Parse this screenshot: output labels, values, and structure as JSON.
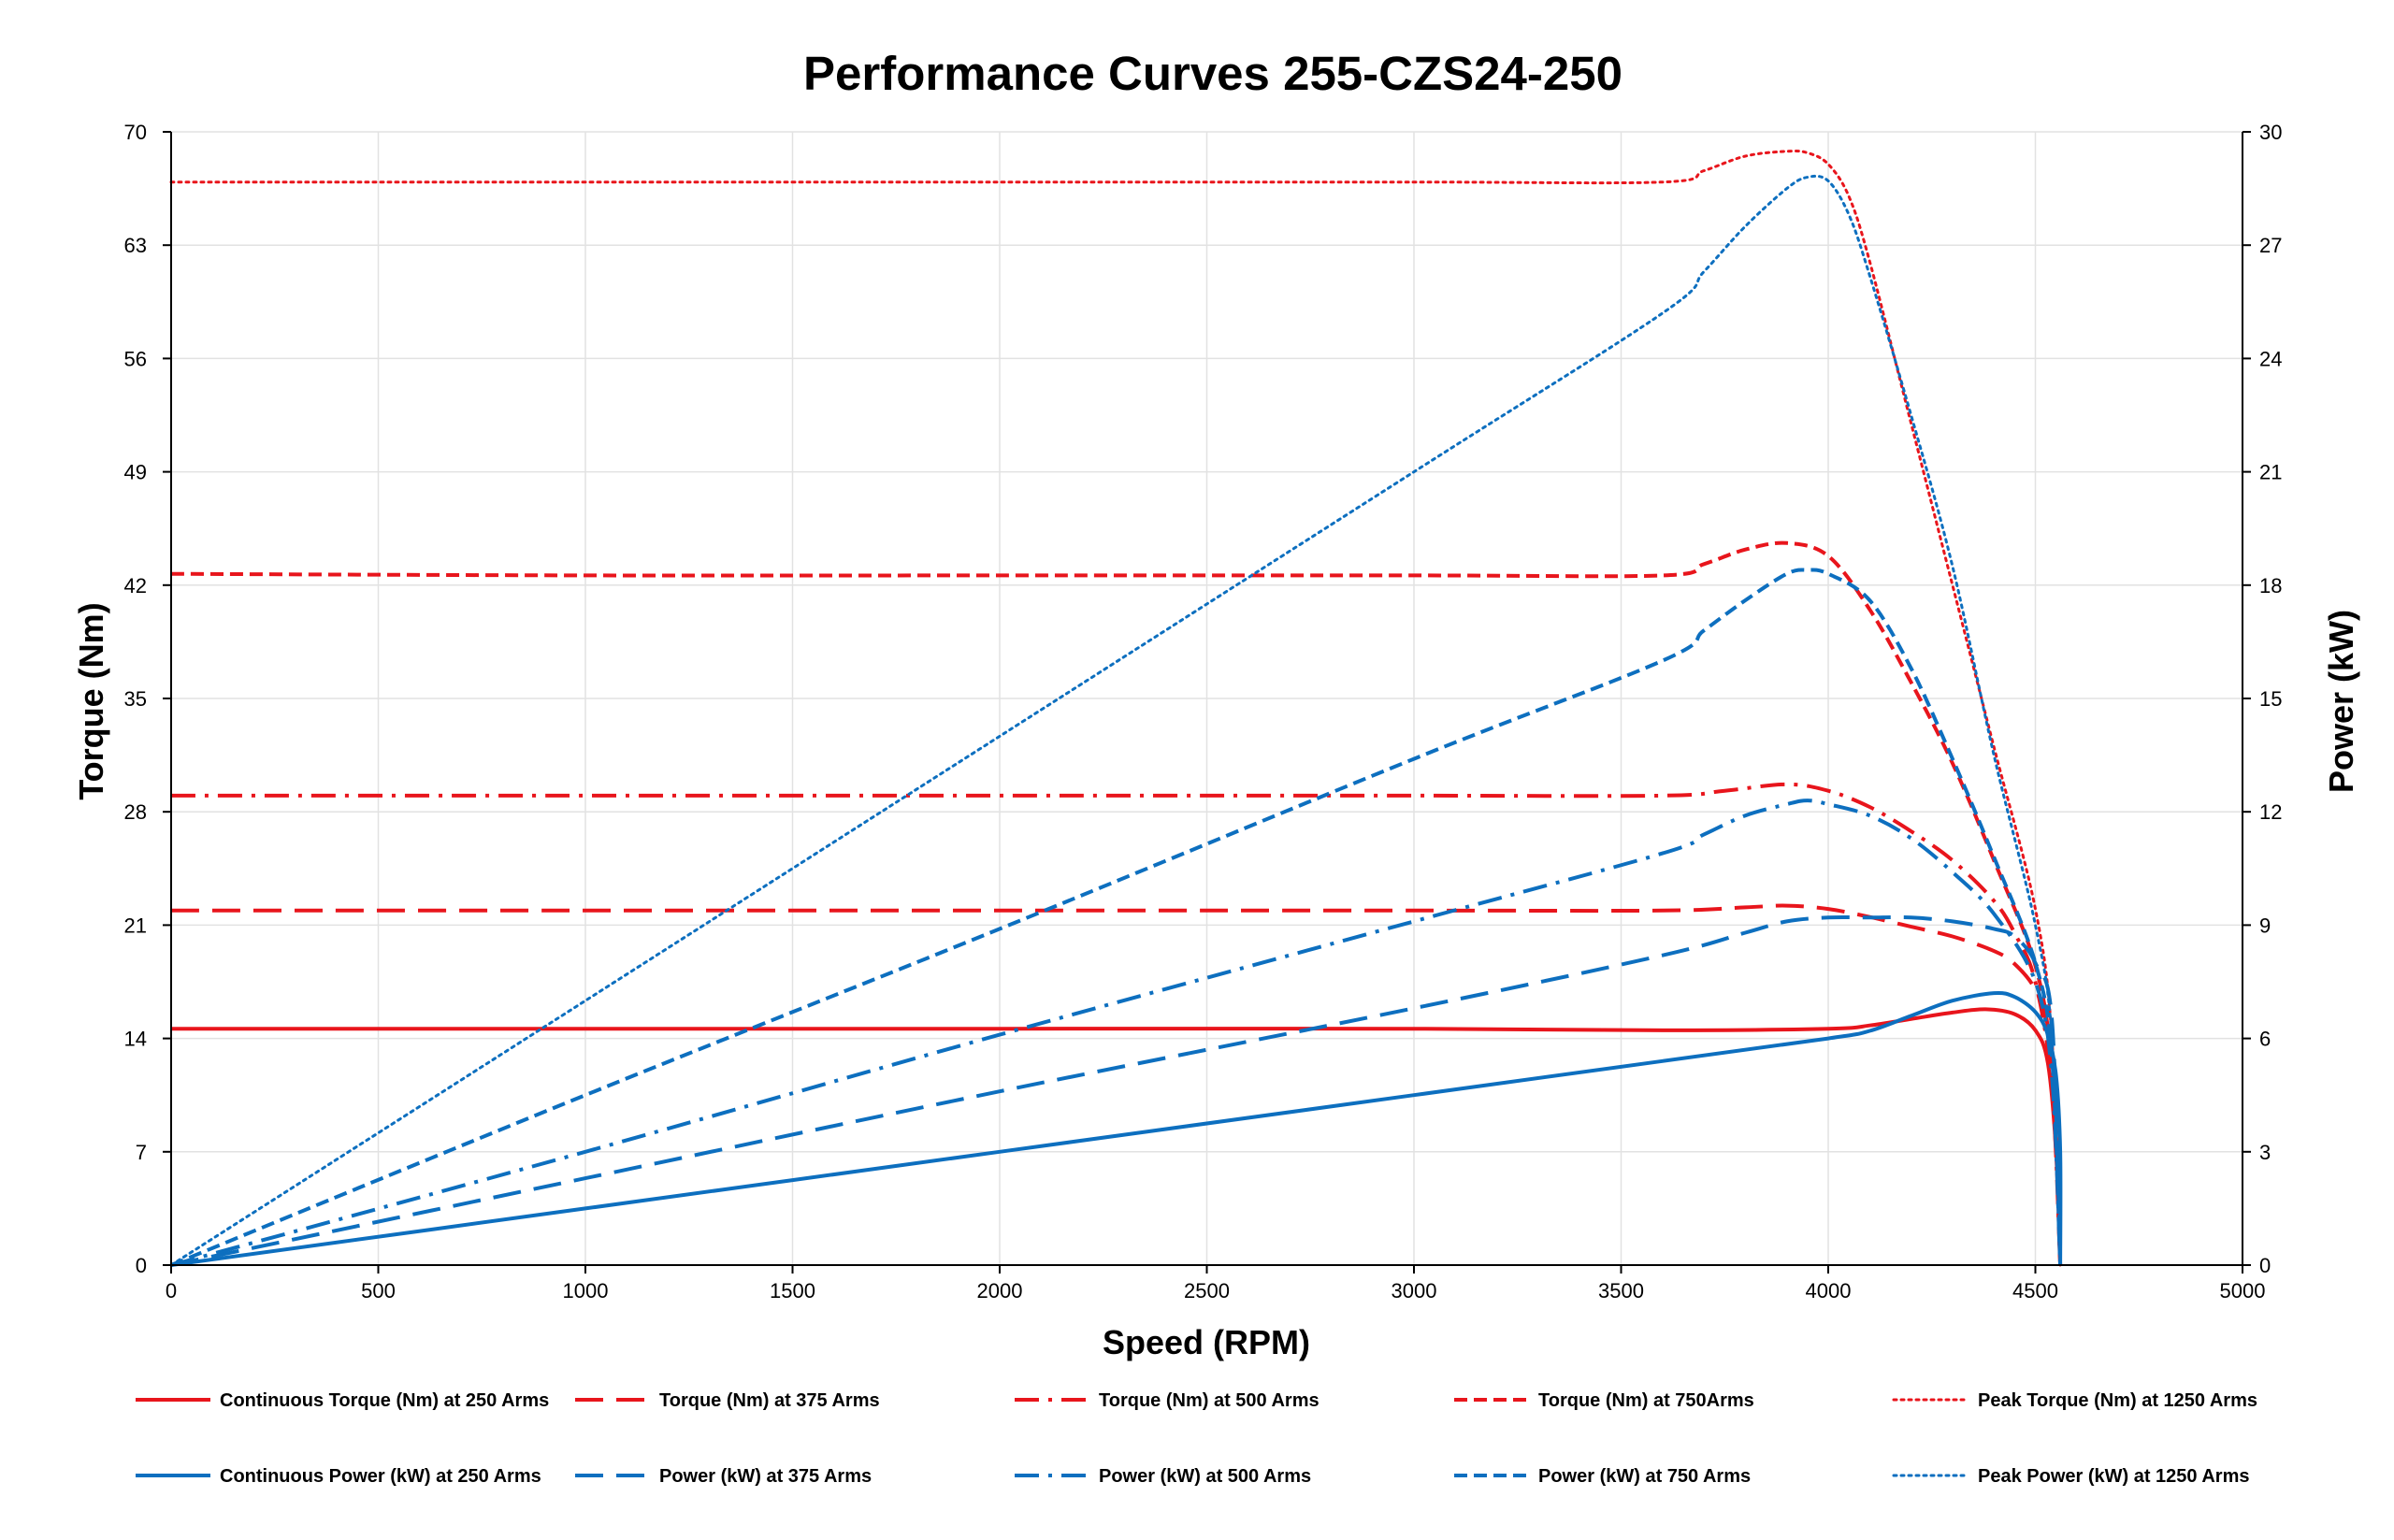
{
  "chart_data": {
    "type": "line",
    "title": "Performance Curves 255-CZS24-250",
    "xlabel": "Speed (RPM)",
    "ylabel": "Torque (Nm)",
    "y2label": "Power (kW)",
    "xlim": [
      0,
      5000
    ],
    "ylim": [
      0,
      70
    ],
    "y2lim": [
      0,
      30
    ],
    "xticks": [
      0,
      500,
      1000,
      1500,
      2000,
      2500,
      3000,
      3500,
      4000,
      4500,
      5000
    ],
    "yticks": [
      0,
      7,
      14,
      21,
      28,
      35,
      42,
      49,
      56,
      63,
      70
    ],
    "y2ticks": [
      0,
      3,
      6,
      9,
      12,
      15,
      18,
      21,
      24,
      27,
      30
    ],
    "grid": true,
    "legend_position": "bottom",
    "colors": {
      "torque": "#e8151c",
      "power": "#0d6fbf"
    },
    "series": [
      {
        "name": "Continuous Torque (Nm) at 250 Arms",
        "axis": "left",
        "color": "#e8151c",
        "dash": "solid",
        "x": [
          0,
          1000,
          2000,
          3000,
          3600,
          4000,
          4100,
          4200,
          4300,
          4380,
          4450,
          4500,
          4530,
          4550,
          4560
        ],
        "y": [
          14.6,
          14.6,
          14.6,
          14.6,
          14.5,
          14.6,
          14.8,
          15.2,
          15.6,
          15.8,
          15.5,
          14.5,
          12.5,
          7.0,
          0.0
        ]
      },
      {
        "name": "Torque (Nm) at 375 Arms",
        "axis": "left",
        "color": "#e8151c",
        "dash": "long",
        "x": [
          0,
          1000,
          2000,
          3000,
          3600,
          3800,
          3900,
          4000,
          4100,
          4200,
          4300,
          4400,
          4450,
          4500,
          4530,
          4550,
          4560
        ],
        "y": [
          21.9,
          21.9,
          21.9,
          21.9,
          21.9,
          22.1,
          22.2,
          22.0,
          21.5,
          20.9,
          20.3,
          19.4,
          18.6,
          17.0,
          14.5,
          8.0,
          0.0
        ]
      },
      {
        "name": "Torque (Nm) at 500 Arms",
        "axis": "left",
        "color": "#e8151c",
        "dash": "dashdot",
        "x": [
          0,
          1000,
          2000,
          3000,
          3600,
          3750,
          3900,
          4000,
          4100,
          4200,
          4300,
          4400,
          4450,
          4500,
          4540,
          4560
        ],
        "y": [
          29.0,
          29.0,
          29.0,
          29.0,
          29.0,
          29.3,
          29.7,
          29.3,
          28.3,
          26.8,
          25.0,
          22.5,
          20.5,
          17.5,
          11.0,
          0.0
        ]
      },
      {
        "name": "Torque (Nm) at 750Arms",
        "axis": "left",
        "color": "#e8151c",
        "dash": "short",
        "x": [
          0,
          1000,
          2000,
          3000,
          3600,
          3700,
          3800,
          3900,
          4000,
          4100,
          4200,
          4300,
          4400,
          4500,
          4540,
          4560
        ],
        "y": [
          42.7,
          42.6,
          42.6,
          42.6,
          42.6,
          43.3,
          44.2,
          44.6,
          43.8,
          40.5,
          36.0,
          31.0,
          25.0,
          18.5,
          12.0,
          0.0
        ]
      },
      {
        "name": "Peak Torque (Nm) at 1250  Arms",
        "axis": "left",
        "color": "#e8151c",
        "dash": "dot",
        "x": [
          0,
          1000,
          2000,
          3000,
          3600,
          3700,
          3800,
          3900,
          3950,
          4000,
          4050,
          4100,
          4200,
          4300,
          4400,
          4500,
          4540,
          4560
        ],
        "y": [
          66.9,
          66.9,
          66.9,
          66.9,
          66.9,
          67.6,
          68.5,
          68.8,
          68.7,
          68.0,
          66.0,
          62.0,
          52.0,
          42.0,
          32.0,
          22.0,
          14.0,
          0.0
        ]
      },
      {
        "name": "Continuous Power (kW) at 250 Arms",
        "axis": "right",
        "color": "#0d6fbf",
        "dash": "solid",
        "x": [
          0,
          1000,
          2000,
          3000,
          3600,
          4000,
          4100,
          4200,
          4300,
          4400,
          4450,
          4500,
          4530,
          4550,
          4560,
          4560
        ],
        "y": [
          0.0,
          1.5,
          3.0,
          4.5,
          5.4,
          6.0,
          6.2,
          6.6,
          7.0,
          7.2,
          7.1,
          6.7,
          6.1,
          5.0,
          3.0,
          0.0
        ]
      },
      {
        "name": "Power (kW) at 375 Arms",
        "axis": "right",
        "color": "#0d6fbf",
        "dash": "long",
        "x": [
          0,
          1000,
          2000,
          3000,
          3600,
          3800,
          3900,
          4000,
          4100,
          4200,
          4300,
          4400,
          4450,
          4500,
          4540,
          4560
        ],
        "y": [
          0.0,
          2.3,
          4.6,
          6.8,
          8.2,
          8.8,
          9.1,
          9.2,
          9.2,
          9.2,
          9.1,
          8.9,
          8.7,
          8.0,
          6.5,
          0.0
        ]
      },
      {
        "name": "Power (kW) at 500 Arms",
        "axis": "right",
        "color": "#0d6fbf",
        "dash": "dashdot",
        "x": [
          0,
          1000,
          2000,
          3000,
          3600,
          3700,
          3800,
          3900,
          3950,
          4000,
          4100,
          4200,
          4300,
          4400,
          4500,
          4540,
          4560
        ],
        "y": [
          0.0,
          3.0,
          6.1,
          9.1,
          10.9,
          11.4,
          11.9,
          12.2,
          12.3,
          12.2,
          11.9,
          11.3,
          10.4,
          9.3,
          7.5,
          5.0,
          0.0
        ]
      },
      {
        "name": "Power (kW) at 750 Arms",
        "axis": "right",
        "color": "#0d6fbf",
        "dash": "short",
        "x": [
          0,
          1000,
          2000,
          3000,
          3600,
          3700,
          3800,
          3900,
          3950,
          4000,
          4100,
          4200,
          4300,
          4400,
          4500,
          4540,
          4560
        ],
        "y": [
          0.0,
          4.5,
          8.9,
          13.4,
          16.0,
          16.8,
          17.6,
          18.3,
          18.4,
          18.3,
          17.6,
          15.8,
          13.4,
          10.8,
          8.0,
          5.5,
          0.0
        ]
      },
      {
        "name": "Peak Power (kW) at 1250 Arms",
        "axis": "right",
        "color": "#0d6fbf",
        "dash": "dot",
        "x": [
          0,
          1000,
          2000,
          3000,
          3600,
          3700,
          3800,
          3900,
          3950,
          4000,
          4050,
          4100,
          4200,
          4300,
          4400,
          4500,
          4540,
          4560
        ],
        "y": [
          0.0,
          7.0,
          14.0,
          21.0,
          25.2,
          26.3,
          27.5,
          28.5,
          28.8,
          28.7,
          27.8,
          26.2,
          22.5,
          18.5,
          13.5,
          9.0,
          6.0,
          0.0
        ]
      }
    ]
  }
}
